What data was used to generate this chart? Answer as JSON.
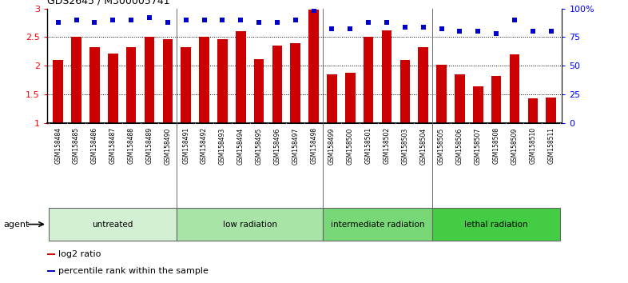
{
  "title": "GDS2645 / M300005741",
  "samples": [
    "GSM158484",
    "GSM158485",
    "GSM158486",
    "GSM158487",
    "GSM158488",
    "GSM158489",
    "GSM158490",
    "GSM158491",
    "GSM158492",
    "GSM158493",
    "GSM158494",
    "GSM158495",
    "GSM158496",
    "GSM158497",
    "GSM158498",
    "GSM158499",
    "GSM158500",
    "GSM158501",
    "GSM158502",
    "GSM158503",
    "GSM158504",
    "GSM158505",
    "GSM158506",
    "GSM158507",
    "GSM158508",
    "GSM158509",
    "GSM158510",
    "GSM158511"
  ],
  "log2_ratio": [
    2.1,
    2.5,
    2.32,
    2.22,
    2.32,
    2.5,
    2.47,
    2.32,
    2.5,
    2.47,
    2.6,
    2.11,
    2.35,
    2.4,
    2.98,
    1.85,
    1.88,
    2.5,
    2.62,
    2.1,
    2.33,
    2.02,
    1.85,
    1.64,
    1.82,
    2.2,
    1.43,
    1.45
  ],
  "percentile_rank": [
    88,
    90,
    88,
    90,
    90,
    92,
    88,
    90,
    90,
    90,
    90,
    88,
    88,
    90,
    98,
    82,
    82,
    88,
    88,
    84,
    84,
    82,
    80,
    80,
    78,
    90,
    80,
    80
  ],
  "groups": [
    {
      "label": "untreated",
      "start": 0,
      "end": 7,
      "color": "#d4f0d4"
    },
    {
      "label": "low radiation",
      "start": 7,
      "end": 15,
      "color": "#a8e4a8"
    },
    {
      "label": "intermediate radiation",
      "start": 15,
      "end": 21,
      "color": "#78d878"
    },
    {
      "label": "lethal radiation",
      "start": 21,
      "end": 28,
      "color": "#44cc44"
    }
  ],
  "bar_color": "#cc0000",
  "dot_color": "#0000cc",
  "ylim_left": [
    1.0,
    3.0
  ],
  "ylim_right": [
    0,
    100
  ],
  "yticks_left": [
    1.0,
    1.5,
    2.0,
    2.5,
    3.0
  ],
  "ytick_labels_left": [
    "1",
    "1.5",
    "2",
    "2.5",
    "3"
  ],
  "yticks_right": [
    0,
    25,
    50,
    75,
    100
  ],
  "ytick_labels_right": [
    "0",
    "25",
    "50",
    "75",
    "100%"
  ],
  "grid_values": [
    1.5,
    2.0,
    2.5
  ],
  "legend_red": "log2 ratio",
  "legend_blue": "percentile rank within the sample",
  "agent_label": "agent",
  "xticklabel_bg": "#cccccc",
  "bar_width": 0.55
}
